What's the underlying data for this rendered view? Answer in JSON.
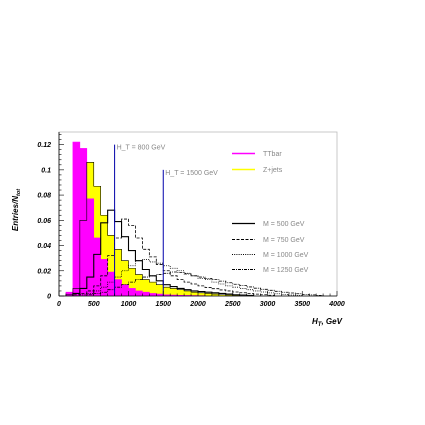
{
  "chart_data": {
    "type": "histogram",
    "xlabel": "H_T GeV",
    "ylabel": "Entries/N_tot",
    "xlim": [
      0,
      4000
    ],
    "ylim": [
      0,
      0.13
    ],
    "x_ticks": [
      0,
      500,
      1000,
      1500,
      2000,
      2500,
      3000,
      3500,
      4000
    ],
    "y_ticks": [
      0,
      0.02,
      0.04,
      0.06,
      0.08,
      0.1,
      0.12
    ],
    "y_tick_labels": [
      "0",
      "0.02",
      "0.04",
      "0.06",
      "0.08",
      "0.1",
      "0.12"
    ],
    "x_tick_labels": [
      "0",
      "500",
      "1000",
      "1500",
      "2000",
      "2500",
      "3000",
      "3500",
      "4000"
    ],
    "bin_width": 100,
    "grid": false,
    "legend_position": "right",
    "series": [
      {
        "name": "TTbar",
        "style": "filled",
        "color": "#ff00ff",
        "x": [
          150,
          250,
          350,
          450,
          550,
          650,
          750,
          850,
          950,
          1050,
          1150,
          1250,
          1350,
          1450,
          1550,
          1650,
          1750,
          1850,
          1950,
          2050
        ],
        "values": [
          0.003,
          0.122,
          0.117,
          0.077,
          0.046,
          0.029,
          0.019,
          0.013,
          0.009,
          0.006,
          0.004,
          0.003,
          0.002,
          0.0015,
          0.001,
          0.0008,
          0.0006,
          0.0005,
          0.0004,
          0.0003
        ]
      },
      {
        "name": "Z+jets",
        "style": "filled",
        "color": "#ffff00",
        "x": [
          150,
          250,
          350,
          450,
          550,
          650,
          750,
          850,
          950,
          1050,
          1150,
          1250,
          1350,
          1450,
          1550,
          1650,
          1750,
          1850,
          1950,
          2050,
          2150,
          2250,
          2350,
          2450,
          2550
        ],
        "values": [
          0.001,
          0.006,
          0.06,
          0.106,
          0.087,
          0.064,
          0.048,
          0.037,
          0.028,
          0.022,
          0.017,
          0.013,
          0.011,
          0.009,
          0.007,
          0.006,
          0.005,
          0.004,
          0.003,
          0.0025,
          0.002,
          0.0015,
          0.001,
          0.0008,
          0.0005
        ]
      },
      {
        "name": "M = 500 GeV",
        "style": "solid",
        "color": "#000000",
        "x": [
          150,
          250,
          350,
          450,
          550,
          650,
          750,
          850,
          950,
          1050,
          1150,
          1250,
          1350,
          1450,
          1550,
          1650,
          1750,
          1850,
          1950,
          2050,
          2150,
          2250,
          2350,
          2450,
          2550,
          2650,
          2750
        ],
        "values": [
          0,
          0.002,
          0.006,
          0.015,
          0.033,
          0.058,
          0.068,
          0.059,
          0.047,
          0.036,
          0.028,
          0.021,
          0.016,
          0.012,
          0.009,
          0.0075,
          0.006,
          0.005,
          0.004,
          0.0035,
          0.003,
          0.0025,
          0.002,
          0.0015,
          0.001,
          0.0008,
          0.0005
        ]
      },
      {
        "name": "M = 750 GeV",
        "style": "dashed",
        "color": "#000000",
        "x": [
          150,
          250,
          350,
          450,
          550,
          650,
          750,
          850,
          950,
          1050,
          1150,
          1250,
          1350,
          1450,
          1550,
          1650,
          1750,
          1850,
          1950,
          2050,
          2150,
          2250,
          2350,
          2450,
          2550,
          2650,
          2750,
          2850,
          2950,
          3050
        ],
        "values": [
          0,
          0.001,
          0.002,
          0.004,
          0.008,
          0.016,
          0.032,
          0.046,
          0.061,
          0.056,
          0.046,
          0.037,
          0.031,
          0.025,
          0.02,
          0.016,
          0.013,
          0.011,
          0.0095,
          0.008,
          0.0068,
          0.0058,
          0.0048,
          0.004,
          0.0032,
          0.0026,
          0.002,
          0.0015,
          0.001,
          0.0006
        ]
      },
      {
        "name": "M = 1000 GeV",
        "style": "dotted",
        "color": "#000000",
        "x": [
          150,
          250,
          350,
          450,
          550,
          650,
          750,
          850,
          950,
          1050,
          1150,
          1250,
          1350,
          1450,
          1550,
          1650,
          1750,
          1850,
          1950,
          2050,
          2150,
          2250,
          2350,
          2450,
          2550,
          2650,
          2750,
          2850,
          2950,
          3050,
          3150,
          3250,
          3350,
          3450
        ],
        "values": [
          0,
          0,
          0.001,
          0.002,
          0.004,
          0.007,
          0.011,
          0.015,
          0.02,
          0.024,
          0.028,
          0.029,
          0.027,
          0.026,
          0.024,
          0.022,
          0.02,
          0.018,
          0.016,
          0.014,
          0.013,
          0.011,
          0.0095,
          0.008,
          0.007,
          0.006,
          0.005,
          0.004,
          0.0032,
          0.0025,
          0.0018,
          0.0012,
          0.0008,
          0.0004
        ]
      },
      {
        "name": "M = 1250 GeV",
        "style": "dashdot",
        "color": "#000000",
        "x": [
          150,
          250,
          350,
          450,
          550,
          650,
          750,
          850,
          950,
          1050,
          1150,
          1250,
          1350,
          1450,
          1550,
          1650,
          1750,
          1850,
          1950,
          2050,
          2150,
          2250,
          2350,
          2450,
          2550,
          2650,
          2750,
          2850,
          2950,
          3050,
          3150,
          3250,
          3350,
          3450,
          3550,
          3650,
          3750
        ],
        "values": [
          0,
          0,
          0,
          0.001,
          0.002,
          0.003,
          0.005,
          0.007,
          0.009,
          0.011,
          0.013,
          0.015,
          0.016,
          0.017,
          0.018,
          0.019,
          0.0185,
          0.0175,
          0.016,
          0.015,
          0.014,
          0.013,
          0.0118,
          0.0105,
          0.0093,
          0.0082,
          0.0072,
          0.0062,
          0.0053,
          0.0045,
          0.0037,
          0.003,
          0.0024,
          0.0018,
          0.0013,
          0.0009,
          0.0005
        ]
      }
    ],
    "vlines": [
      {
        "x": 800,
        "ymax": 0.12,
        "label": "H_T = 800 GeV",
        "color": "#0000aa"
      },
      {
        "x": 1500,
        "ymax": 0.1,
        "label": "H_T = 1500 GeV",
        "color": "#0000aa"
      }
    ]
  }
}
